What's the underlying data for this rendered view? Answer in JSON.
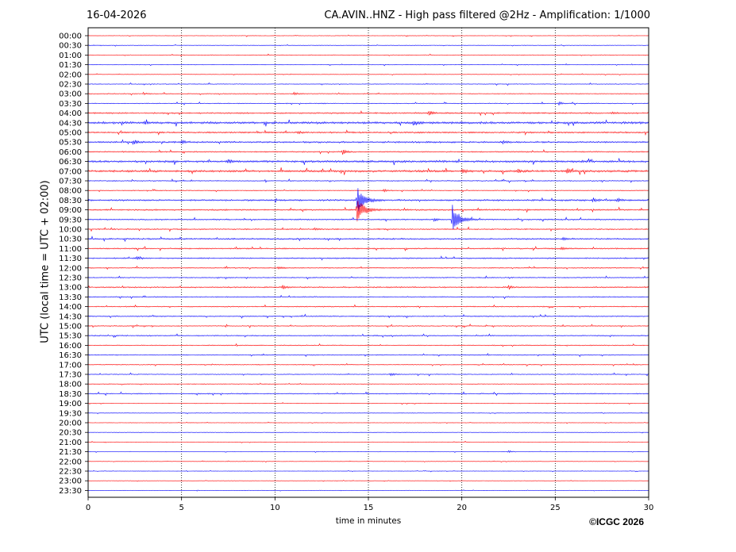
{
  "header": {
    "date": "16-04-2026",
    "title": "CA.AVIN..HNZ - High pass filtered @2Hz - Amplification: 1/1000"
  },
  "footer": {
    "copyright": "©ICGC 2026"
  },
  "colors": {
    "trace_a": "#ff0000",
    "trace_b": "#0000ff",
    "axis": "#000000",
    "grid": "#000000"
  },
  "chart_data": {
    "type": "line",
    "title": "CA.AVIN..HNZ - High pass filtered @2Hz - Amplification: 1/1000",
    "xlabel": "time in minutes",
    "ylabel": "UTC (local time = UTC + 02:00)",
    "xlim": [
      0,
      30
    ],
    "x_ticks": [
      "0",
      "5",
      "10",
      "15",
      "20",
      "25",
      "30"
    ],
    "grid": "vertical dotted at x ticks",
    "rows": [
      "00:00",
      "00:30",
      "01:00",
      "01:30",
      "02:00",
      "02:30",
      "03:00",
      "03:30",
      "04:00",
      "04:30",
      "05:00",
      "05:30",
      "06:00",
      "06:30",
      "07:00",
      "07:30",
      "08:00",
      "08:30",
      "09:00",
      "09:30",
      "10:00",
      "10:30",
      "11:00",
      "11:30",
      "12:00",
      "12:30",
      "13:00",
      "13:30",
      "14:00",
      "14:30",
      "15:00",
      "15:30",
      "16:00",
      "16:30",
      "17:00",
      "17:30",
      "18:00",
      "18:30",
      "19:00",
      "19:30",
      "20:00",
      "20:30",
      "21:00",
      "21:30",
      "22:00",
      "22:30",
      "23:00",
      "23:30"
    ],
    "row_colors": [
      "red",
      "blue"
    ],
    "events": [
      {
        "row": "03:00",
        "minute": 11.0,
        "amplitude": 0.35
      },
      {
        "row": "03:00",
        "minute": 3.0,
        "amplitude": 0.15
      },
      {
        "row": "03:30",
        "minute": 25.2,
        "amplitude": 0.25
      },
      {
        "row": "04:00",
        "minute": 18.2,
        "amplitude": 0.4
      },
      {
        "row": "04:00",
        "minute": 28.0,
        "amplitude": 0.2
      },
      {
        "row": "04:30",
        "minute": 17.4,
        "amplitude": 0.45
      },
      {
        "row": "04:30",
        "minute": 3.0,
        "amplitude": 0.2
      },
      {
        "row": "05:00",
        "minute": 11.2,
        "amplitude": 0.3
      },
      {
        "row": "05:30",
        "minute": 2.4,
        "amplitude": 0.5
      },
      {
        "row": "05:30",
        "minute": 5.0,
        "amplitude": 0.35
      },
      {
        "row": "05:30",
        "minute": 22.2,
        "amplitude": 0.25
      },
      {
        "row": "06:00",
        "minute": 13.6,
        "amplitude": 0.55
      },
      {
        "row": "06:30",
        "minute": 7.5,
        "amplitude": 0.3
      },
      {
        "row": "07:00",
        "minute": 20.0,
        "amplitude": 0.4
      },
      {
        "row": "07:00",
        "minute": 25.6,
        "amplitude": 0.5
      },
      {
        "row": "07:00",
        "minute": 23.0,
        "amplitude": 0.25
      },
      {
        "row": "08:00",
        "minute": 15.8,
        "amplitude": 0.25
      },
      {
        "row": "08:30",
        "minute": 27.0,
        "amplitude": 0.4
      },
      {
        "row": "08:30",
        "minute": 28.3,
        "amplitude": 0.35
      },
      {
        "row": "08:30",
        "minute": 14.4,
        "amplitude": 2.4
      },
      {
        "row": "09:00",
        "minute": 14.4,
        "amplitude": 2.2
      },
      {
        "row": "09:30",
        "minute": 19.5,
        "amplitude": 2.6
      },
      {
        "row": "09:30",
        "minute": 18.5,
        "amplitude": 0.3
      },
      {
        "row": "10:00",
        "minute": 12.1,
        "amplitude": 0.25
      },
      {
        "row": "10:30",
        "minute": 25.4,
        "amplitude": 0.3
      },
      {
        "row": "11:00",
        "minute": 25.3,
        "amplitude": 0.35
      },
      {
        "row": "11:30",
        "minute": 2.6,
        "amplitude": 0.3
      },
      {
        "row": "12:00",
        "minute": 10.2,
        "amplitude": 0.25
      },
      {
        "row": "13:00",
        "minute": 10.4,
        "amplitude": 0.4
      },
      {
        "row": "13:00",
        "minute": 22.5,
        "amplitude": 0.35
      },
      {
        "row": "17:30",
        "minute": 16.2,
        "amplitude": 0.3
      },
      {
        "row": "21:30",
        "minute": 22.5,
        "amplitude": 0.15
      }
    ],
    "noise_level_by_row": [
      0.05,
      0.05,
      0.06,
      0.06,
      0.05,
      0.07,
      0.08,
      0.08,
      0.14,
      0.22,
      0.15,
      0.16,
      0.12,
      0.2,
      0.2,
      0.1,
      0.08,
      0.16,
      0.14,
      0.12,
      0.12,
      0.14,
      0.12,
      0.12,
      0.1,
      0.1,
      0.12,
      0.1,
      0.1,
      0.1,
      0.1,
      0.1,
      0.09,
      0.09,
      0.08,
      0.08,
      0.07,
      0.1,
      0.06,
      0.05,
      0.05,
      0.05,
      0.05,
      0.04,
      0.04,
      0.04,
      0.04,
      0.04
    ]
  }
}
